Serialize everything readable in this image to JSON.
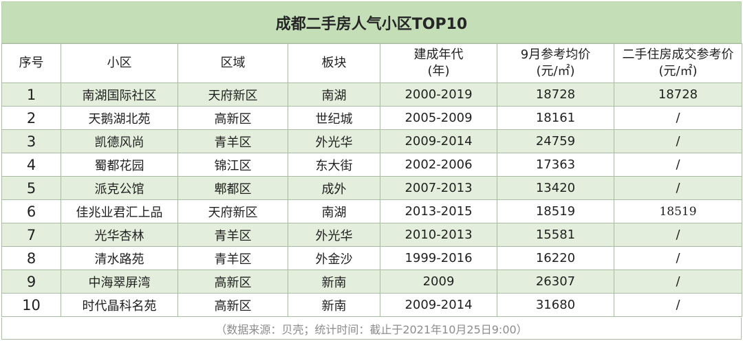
{
  "title": "成都二手房人气小区TOP10",
  "headers": {
    "seq": "序号",
    "name": "小区",
    "district": "区域",
    "block": "板块",
    "year_line1": "建成年代",
    "year_line2": "(年)",
    "price_line1": "9月参考均价",
    "price_line2": "(元/㎡)",
    "deal_line1": "二手住房成交参考价",
    "deal_line2": "(元/㎡)"
  },
  "rows": [
    {
      "seq": "1",
      "name": "南湖国际社区",
      "district": "天府新区",
      "block": "南湖",
      "year": "2000-2019",
      "price": "18728",
      "deal": "18728"
    },
    {
      "seq": "2",
      "name": "天鹅湖北苑",
      "district": "高新区",
      "block": "世纪城",
      "year": "2005-2009",
      "price": "18161",
      "deal": "/"
    },
    {
      "seq": "3",
      "name": "凯德风尚",
      "district": "青羊区",
      "block": "外光华",
      "year": "2009-2014",
      "price": "24759",
      "deal": "/"
    },
    {
      "seq": "4",
      "name": "蜀都花园",
      "district": "锦江区",
      "block": "东大街",
      "year": "2002-2006",
      "price": "17363",
      "deal": "/"
    },
    {
      "seq": "5",
      "name": "派克公馆",
      "district": "郫都区",
      "block": "成外",
      "year": "2007-2013",
      "price": "13420",
      "deal": "/"
    },
    {
      "seq": "6",
      "name": "佳兆业君汇上品",
      "district": "天府新区",
      "block": "南湖",
      "year": "2013-2015",
      "price": "18519",
      "deal": "18519"
    },
    {
      "seq": "7",
      "name": "光华杏林",
      "district": "青羊区",
      "block": "外光华",
      "year": "2010-2013",
      "price": "15581",
      "deal": "/"
    },
    {
      "seq": "8",
      "name": "清水路苑",
      "district": "青羊区",
      "block": "外金沙",
      "year": "1999-2016",
      "price": "16220",
      "deal": "/"
    },
    {
      "seq": "9",
      "name": "中海翠屏湾",
      "district": "高新区",
      "block": "新南",
      "year": "2009",
      "price": "26307",
      "deal": "/"
    },
    {
      "seq": "10",
      "name": "时代晶科名苑",
      "district": "高新区",
      "block": "新南",
      "year": "2009-2014",
      "price": "31680",
      "deal": "/"
    }
  ],
  "footer": "（数据来源：贝壳；统计时间：截止于2021年10月25日9:00）",
  "colors": {
    "title_background": "#c4dfb8",
    "stripe_background": "#e3efdc",
    "border": "#a9bca1",
    "footer_text": "#8c8c8c"
  }
}
